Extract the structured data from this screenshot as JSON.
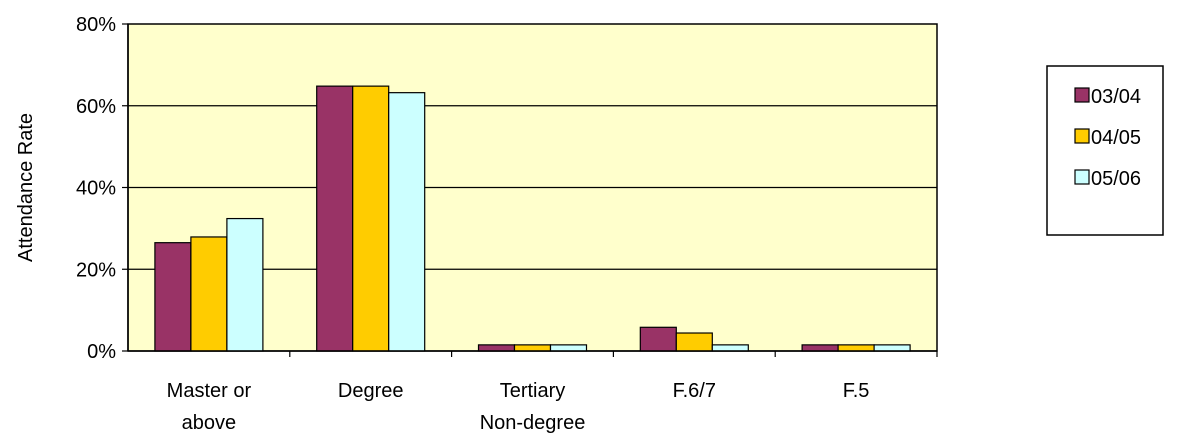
{
  "chart_data": {
    "type": "bar",
    "title": "",
    "xlabel": "",
    "ylabel": "Attendance Rate",
    "ylim": [
      0,
      0.8
    ],
    "yticks": [
      "0%",
      "20%",
      "40%",
      "60%",
      "80%"
    ],
    "ytick_values": [
      0,
      0.2,
      0.4,
      0.6,
      0.8
    ],
    "grid": true,
    "legend_position": "right",
    "plot_background": "#ffffcc",
    "categories": [
      [
        "Master or",
        "above"
      ],
      [
        "Degree"
      ],
      [
        "Tertiary",
        "Non-degree"
      ],
      [
        "F.6/7"
      ],
      [
        "F.5"
      ]
    ],
    "series": [
      {
        "name": "03/04",
        "color": "#993366",
        "values": [
          0.265,
          0.648,
          0.015,
          0.058,
          0.015
        ]
      },
      {
        "name": "04/05",
        "color": "#ffcc00",
        "values": [
          0.279,
          0.648,
          0.015,
          0.044,
          0.015
        ]
      },
      {
        "name": "05/06",
        "color": "#ccffff",
        "values": [
          0.324,
          0.632,
          0.015,
          0.015,
          0.015
        ]
      }
    ]
  }
}
